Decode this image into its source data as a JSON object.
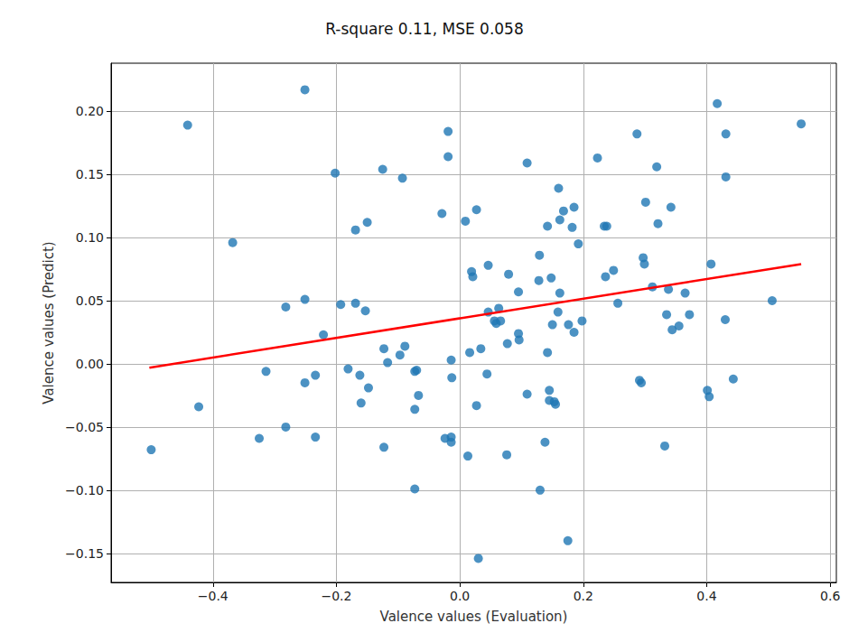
{
  "chart_data": {
    "type": "scatter",
    "title": "R-square 0.11, MSE 0.058",
    "x_label": "Valence values (Evaluation)",
    "y_label": "Valence values (Predict)",
    "color": "#1f77b4",
    "marker": "circle",
    "grid": true,
    "xlim": [
      -0.565,
      0.61
    ],
    "ylim": [
      -0.173,
      0.238
    ],
    "xticks": [
      {
        "value": -0.4,
        "label": "−0.4"
      },
      {
        "value": -0.2,
        "label": "−0.2"
      },
      {
        "value": 0.0,
        "label": "0.0"
      },
      {
        "value": 0.2,
        "label": "0.2"
      },
      {
        "value": 0.4,
        "label": "0.4"
      },
      {
        "value": 0.6,
        "label": "0.6"
      }
    ],
    "yticks": [
      {
        "value": -0.15,
        "label": "−0.15"
      },
      {
        "value": -0.1,
        "label": "−0.10"
      },
      {
        "value": -0.05,
        "label": "−0.05"
      },
      {
        "value": 0.0,
        "label": "0.00"
      },
      {
        "value": 0.05,
        "label": "0.05"
      },
      {
        "value": 0.1,
        "label": "0.10"
      },
      {
        "value": 0.15,
        "label": "0.15"
      },
      {
        "value": 0.2,
        "label": "0.20"
      }
    ],
    "x": [
      -0.5,
      -0.441,
      -0.423,
      -0.368,
      -0.251,
      -0.251,
      -0.251,
      -0.325,
      -0.314,
      -0.282,
      -0.282,
      -0.234,
      -0.234,
      -0.221,
      -0.202,
      -0.193,
      -0.181,
      -0.169,
      -0.169,
      -0.162,
      -0.16,
      -0.153,
      -0.15,
      -0.148,
      -0.125,
      -0.123,
      -0.123,
      -0.117,
      -0.093,
      -0.097,
      -0.089,
      -0.073,
      -0.07,
      -0.073,
      -0.073,
      -0.067,
      -0.029,
      -0.019,
      -0.019,
      -0.024,
      -0.014,
      -0.014,
      -0.014,
      -0.013,
      0.009,
      0.013,
      0.016,
      0.019,
      0.021,
      0.027,
      0.027,
      0.034,
      0.03,
      0.046,
      0.044,
      0.046,
      0.056,
      0.059,
      0.063,
      0.066,
      0.076,
      0.079,
      0.077,
      0.095,
      0.095,
      0.096,
      0.109,
      0.109,
      0.128,
      0.129,
      0.13,
      0.138,
      0.142,
      0.142,
      0.145,
      0.145,
      0.148,
      0.15,
      0.153,
      0.155,
      0.159,
      0.16,
      0.162,
      0.162,
      0.168,
      0.176,
      0.182,
      0.185,
      0.185,
      0.192,
      0.198,
      0.175,
      0.223,
      0.234,
      0.238,
      0.236,
      0.249,
      0.256,
      0.287,
      0.291,
      0.294,
      0.297,
      0.299,
      0.301,
      0.312,
      0.319,
      0.321,
      0.332,
      0.335,
      0.338,
      0.342,
      0.344,
      0.355,
      0.365,
      0.372,
      0.401,
      0.404,
      0.407,
      0.417,
      0.43,
      0.431,
      0.431,
      0.443,
      0.506,
      0.553
    ],
    "values": [
      -0.068,
      0.189,
      -0.034,
      0.096,
      0.217,
      0.051,
      -0.015,
      -0.059,
      -0.006,
      0.045,
      -0.05,
      -0.009,
      -0.058,
      0.023,
      0.151,
      0.047,
      -0.004,
      0.048,
      0.106,
      -0.009,
      -0.031,
      0.042,
      0.112,
      -0.019,
      0.154,
      0.012,
      -0.066,
      0.001,
      0.147,
      0.007,
      0.014,
      -0.006,
      -0.005,
      -0.036,
      -0.099,
      -0.025,
      0.119,
      0.184,
      0.164,
      -0.059,
      -0.058,
      -0.062,
      0.003,
      -0.011,
      0.113,
      -0.073,
      0.009,
      0.073,
      0.069,
      0.122,
      -0.033,
      0.012,
      -0.154,
      0.078,
      -0.008,
      0.041,
      0.034,
      0.032,
      0.044,
      0.034,
      -0.072,
      0.071,
      0.016,
      0.057,
      0.024,
      0.019,
      0.159,
      -0.024,
      0.066,
      0.086,
      -0.1,
      -0.062,
      0.109,
      0.009,
      -0.021,
      -0.029,
      0.068,
      0.031,
      -0.03,
      -0.032,
      0.041,
      0.139,
      0.056,
      0.114,
      0.121,
      0.031,
      0.108,
      0.124,
      0.025,
      0.095,
      0.034,
      -0.14,
      0.163,
      0.109,
      0.109,
      0.069,
      0.074,
      0.048,
      0.182,
      -0.013,
      -0.015,
      0.084,
      0.079,
      0.128,
      0.061,
      0.156,
      0.111,
      -0.065,
      0.039,
      0.059,
      0.124,
      0.027,
      0.03,
      0.056,
      0.039,
      -0.021,
      -0.026,
      0.079,
      0.206,
      0.035,
      0.182,
      0.148,
      -0.012,
      0.05,
      0.19
    ],
    "trend_line": {
      "x": [
        -0.503,
        0.553
      ],
      "values": [
        -0.003,
        0.079
      ],
      "color": "#ff0000",
      "line_style": "solid"
    }
  }
}
